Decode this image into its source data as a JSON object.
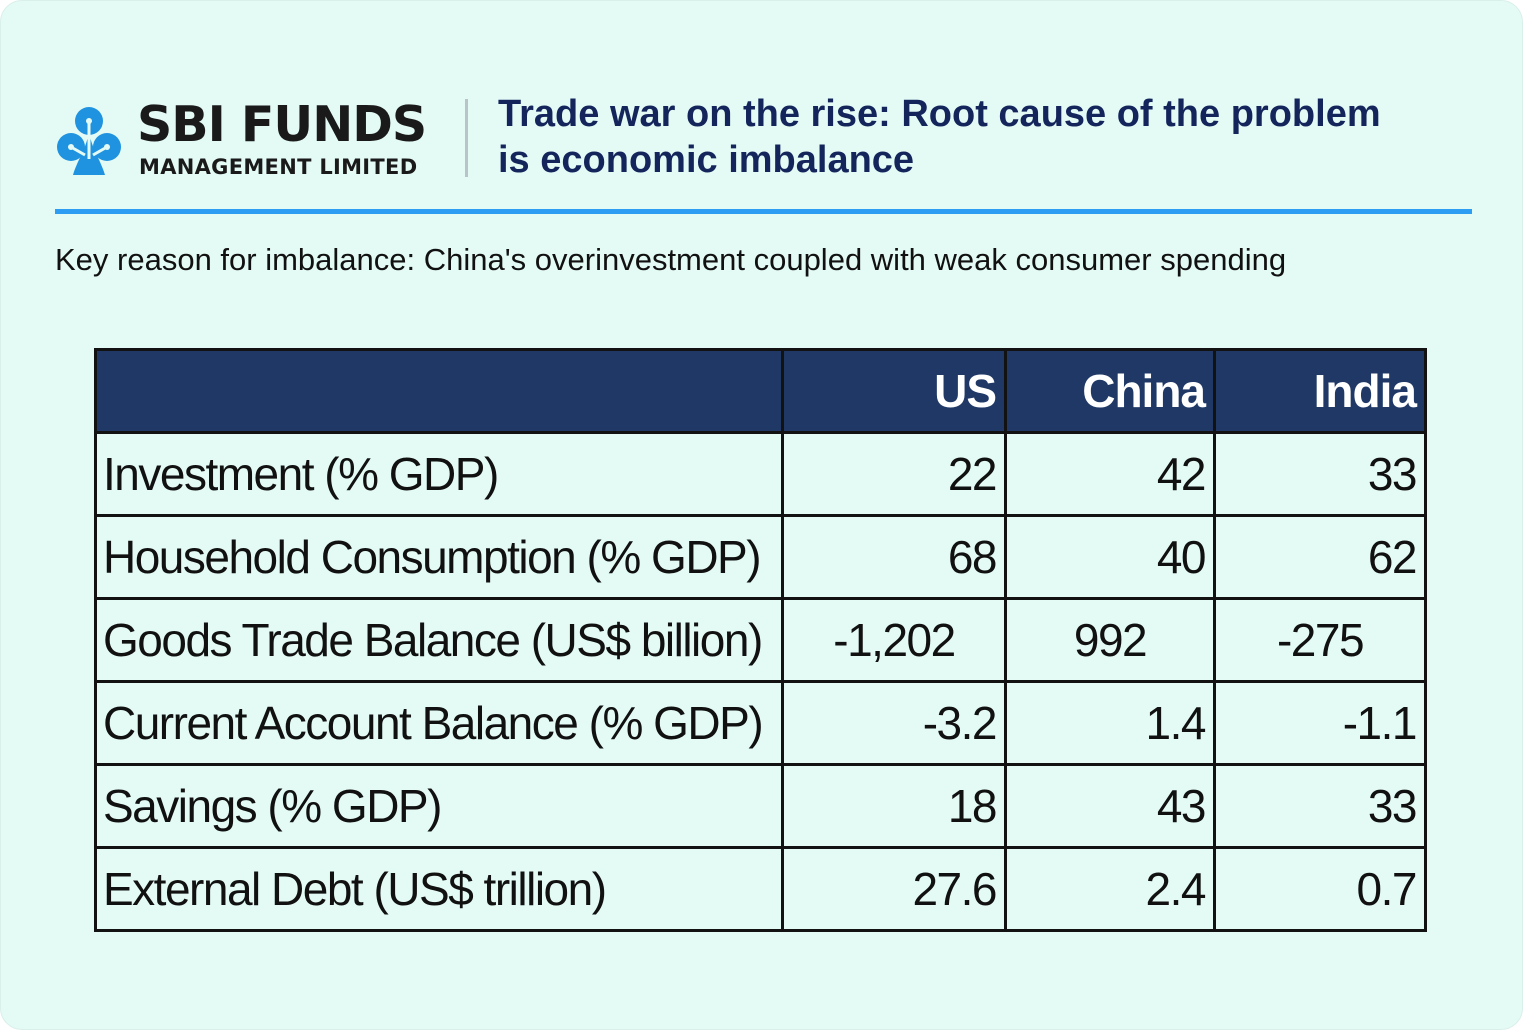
{
  "brand": {
    "name": "SBI FUNDS",
    "subname": "MANAGEMENT LIMITED",
    "color": "#1f93e0"
  },
  "headline": {
    "line1": "Trade war on the rise: Root cause of the problem",
    "line2": "is economic imbalance"
  },
  "subtitle": "Key reason for imbalance: China's overinvestment coupled with weak consumer spending",
  "table": {
    "columns": [
      "",
      "US",
      "China",
      "India"
    ],
    "rows": [
      {
        "label": "Investment (% GDP)",
        "values": [
          "22",
          "42",
          "33"
        ]
      },
      {
        "label": "Household Consumption (% GDP)",
        "values": [
          "68",
          "40",
          "62"
        ]
      },
      {
        "label": "Goods Trade Balance (US$ billion)",
        "values": [
          "-1,202",
          "992",
          "-275"
        ]
      },
      {
        "label": "Current Account Balance (% GDP)",
        "values": [
          "-3.2",
          "1.4",
          "-1.1"
        ]
      },
      {
        "label": "Savings (% GDP)",
        "values": [
          "18",
          "43",
          "33"
        ]
      },
      {
        "label": "External Debt (US$ trillion)",
        "values": [
          "27.6",
          "2.4",
          "0.7"
        ]
      }
    ]
  },
  "colors": {
    "background": "#e4fbf5",
    "headline": "#14255c",
    "rule": "#2d9cf3",
    "table_header": "#1f3866"
  }
}
